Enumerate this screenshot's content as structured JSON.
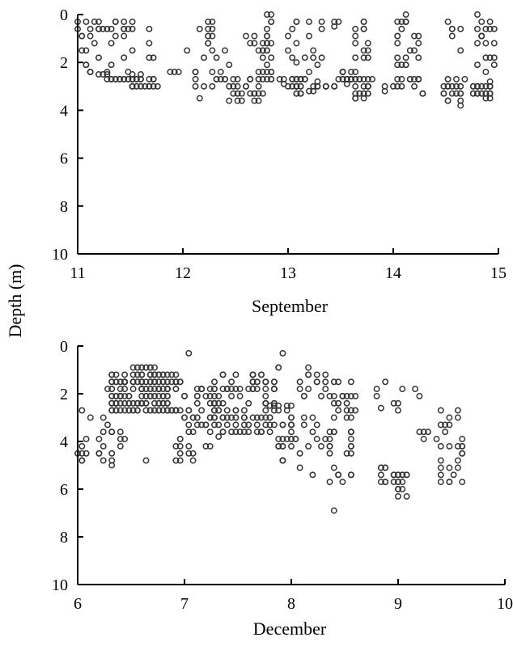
{
  "figure": {
    "ylabel": "Depth (m)"
  },
  "chart_data": [
    {
      "type": "scatter",
      "xlabel": "September",
      "ylabel": "Depth (m)",
      "xlim": [
        11,
        15
      ],
      "ylim": [
        0,
        10
      ],
      "y_inverted": true,
      "xticks": [
        "11",
        "12",
        "13",
        "14",
        "15"
      ],
      "yticks": [
        "0",
        "2",
        "4",
        "6",
        "8",
        "10"
      ],
      "marker": "open-circle",
      "marker_color": "#333333",
      "bands": [
        {
          "x_start": 11.0,
          "x_end": 11.55,
          "y_min": 0.2,
          "y_max": 2.8,
          "count": 40
        },
        {
          "x_start": 11.2,
          "x_end": 11.6,
          "y_min": 2.5,
          "y_max": 2.8,
          "count": 20
        },
        {
          "x_start": 11.5,
          "x_end": 11.75,
          "y_min": 2.6,
          "y_max": 3.1,
          "count": 16
        },
        {
          "x_start": 11.62,
          "x_end": 11.72,
          "y_min": 0.5,
          "y_max": 2.0,
          "count": 4
        },
        {
          "x_start": 11.8,
          "x_end": 11.95,
          "y_min": 2.3,
          "y_max": 2.6,
          "count": 3
        },
        {
          "x_start": 12.05,
          "x_end": 12.3,
          "y_min": 0.2,
          "y_max": 3.5,
          "count": 22
        },
        {
          "x_start": 12.3,
          "x_end": 12.5,
          "y_min": 1.5,
          "y_max": 2.8,
          "count": 10
        },
        {
          "x_start": 12.45,
          "x_end": 12.75,
          "y_min": 2.6,
          "y_max": 3.7,
          "count": 26
        },
        {
          "x_start": 12.55,
          "x_end": 12.72,
          "y_min": 0.5,
          "y_max": 2.5,
          "count": 6
        },
        {
          "x_start": 12.75,
          "x_end": 12.85,
          "y_min": 0.0,
          "y_max": 2.8,
          "count": 26
        },
        {
          "x_start": 12.85,
          "x_end": 12.95,
          "y_min": 2.6,
          "y_max": 2.9,
          "count": 4
        },
        {
          "x_start": 12.95,
          "x_end": 13.15,
          "y_min": 2.5,
          "y_max": 3.5,
          "count": 24
        },
        {
          "x_start": 12.97,
          "x_end": 13.1,
          "y_min": 0.2,
          "y_max": 2.0,
          "count": 8
        },
        {
          "x_start": 13.2,
          "x_end": 13.45,
          "y_min": 2.8,
          "y_max": 3.2,
          "count": 12
        },
        {
          "x_start": 13.15,
          "x_end": 13.32,
          "y_min": 0.3,
          "y_max": 2.5,
          "count": 10
        },
        {
          "x_start": 13.45,
          "x_end": 13.62,
          "y_min": 2.4,
          "y_max": 2.9,
          "count": 16
        },
        {
          "x_start": 13.42,
          "x_end": 13.52,
          "y_min": 0.3,
          "y_max": 0.5,
          "count": 3
        },
        {
          "x_start": 13.6,
          "x_end": 13.8,
          "y_min": 2.6,
          "y_max": 3.5,
          "count": 24
        },
        {
          "x_start": 13.62,
          "x_end": 13.78,
          "y_min": 0.2,
          "y_max": 2.5,
          "count": 14
        },
        {
          "x_start": 13.9,
          "x_end": 14.02,
          "y_min": 2.9,
          "y_max": 3.2,
          "count": 3
        },
        {
          "x_start": 14.02,
          "x_end": 14.25,
          "y_min": 2.6,
          "y_max": 3.0,
          "count": 12
        },
        {
          "x_start": 14.02,
          "x_end": 14.25,
          "y_min": 0.0,
          "y_max": 2.2,
          "count": 22
        },
        {
          "x_start": 14.25,
          "x_end": 14.32,
          "y_min": 3.2,
          "y_max": 3.6,
          "count": 2
        },
        {
          "x_start": 14.45,
          "x_end": 14.68,
          "y_min": 2.7,
          "y_max": 3.8,
          "count": 20
        },
        {
          "x_start": 14.5,
          "x_end": 14.65,
          "y_min": 0.3,
          "y_max": 2.0,
          "count": 6
        },
        {
          "x_start": 14.75,
          "x_end": 14.95,
          "y_min": 2.8,
          "y_max": 3.5,
          "count": 28
        },
        {
          "x_start": 14.75,
          "x_end": 14.95,
          "y_min": 0.0,
          "y_max": 2.5,
          "count": 20
        }
      ]
    },
    {
      "type": "scatter",
      "xlabel": "December",
      "ylabel": "Depth (m)",
      "xlim": [
        6,
        10
      ],
      "ylim": [
        0,
        10
      ],
      "y_inverted": true,
      "xticks": [
        "6",
        "7",
        "8",
        "9",
        "10"
      ],
      "yticks": [
        "0",
        "2",
        "4",
        "6",
        "8",
        "10"
      ],
      "marker": "open-circle",
      "marker_color": "#333333",
      "bands": [
        {
          "x_start": 6.0,
          "x_end": 6.12,
          "y_min": 2.6,
          "y_max": 5.0,
          "count": 10
        },
        {
          "x_start": 6.2,
          "x_end": 6.35,
          "y_min": 1.8,
          "y_max": 5.0,
          "count": 12
        },
        {
          "x_start": 6.3,
          "x_end": 6.95,
          "y_min": 1.2,
          "y_max": 2.8,
          "count": 170
        },
        {
          "x_start": 6.5,
          "x_end": 6.78,
          "y_min": 0.8,
          "y_max": 1.3,
          "count": 20
        },
        {
          "x_start": 6.3,
          "x_end": 6.45,
          "y_min": 3.0,
          "y_max": 4.5,
          "count": 6
        },
        {
          "x_start": 6.65,
          "x_end": 6.72,
          "y_min": 4.8,
          "y_max": 5.1,
          "count": 1
        },
        {
          "x_start": 6.9,
          "x_end": 7.1,
          "y_min": 2.0,
          "y_max": 5.3,
          "count": 22
        },
        {
          "x_start": 7.0,
          "x_end": 7.05,
          "y_min": 0.2,
          "y_max": 0.4,
          "count": 1
        },
        {
          "x_start": 7.1,
          "x_end": 7.35,
          "y_min": 1.6,
          "y_max": 3.4,
          "count": 30
        },
        {
          "x_start": 7.2,
          "x_end": 7.28,
          "y_min": 3.9,
          "y_max": 4.2,
          "count": 2
        },
        {
          "x_start": 7.25,
          "x_end": 7.85,
          "y_min": 1.2,
          "y_max": 3.8,
          "count": 95
        },
        {
          "x_start": 7.8,
          "x_end": 8.05,
          "y_min": 2.5,
          "y_max": 5.0,
          "count": 34
        },
        {
          "x_start": 7.85,
          "x_end": 7.95,
          "y_min": 0.2,
          "y_max": 0.4,
          "count": 1
        },
        {
          "x_start": 7.8,
          "x_end": 7.95,
          "y_min": 0.8,
          "y_max": 2.2,
          "count": 5
        },
        {
          "x_start": 8.05,
          "x_end": 8.4,
          "y_min": 0.8,
          "y_max": 5.8,
          "count": 28
        },
        {
          "x_start": 8.3,
          "x_end": 8.6,
          "y_min": 1.2,
          "y_max": 4.5,
          "count": 36
        },
        {
          "x_start": 8.4,
          "x_end": 8.6,
          "y_min": 4.5,
          "y_max": 5.8,
          "count": 6
        },
        {
          "x_start": 8.4,
          "x_end": 8.45,
          "y_min": 6.8,
          "y_max": 7.0,
          "count": 1
        },
        {
          "x_start": 8.78,
          "x_end": 8.88,
          "y_min": 1.2,
          "y_max": 2.6,
          "count": 4
        },
        {
          "x_start": 8.82,
          "x_end": 8.9,
          "y_min": 4.9,
          "y_max": 5.8,
          "count": 8
        },
        {
          "x_start": 8.95,
          "x_end": 9.1,
          "y_min": 5.2,
          "y_max": 6.3,
          "count": 18
        },
        {
          "x_start": 8.95,
          "x_end": 9.05,
          "y_min": 1.8,
          "y_max": 3.4,
          "count": 4
        },
        {
          "x_start": 9.1,
          "x_end": 9.2,
          "y_min": 1.5,
          "y_max": 2.5,
          "count": 2
        },
        {
          "x_start": 9.2,
          "x_end": 9.35,
          "y_min": 3.4,
          "y_max": 4.5,
          "count": 4
        },
        {
          "x_start": 9.35,
          "x_end": 9.6,
          "y_min": 2.5,
          "y_max": 5.8,
          "count": 28
        }
      ]
    }
  ]
}
